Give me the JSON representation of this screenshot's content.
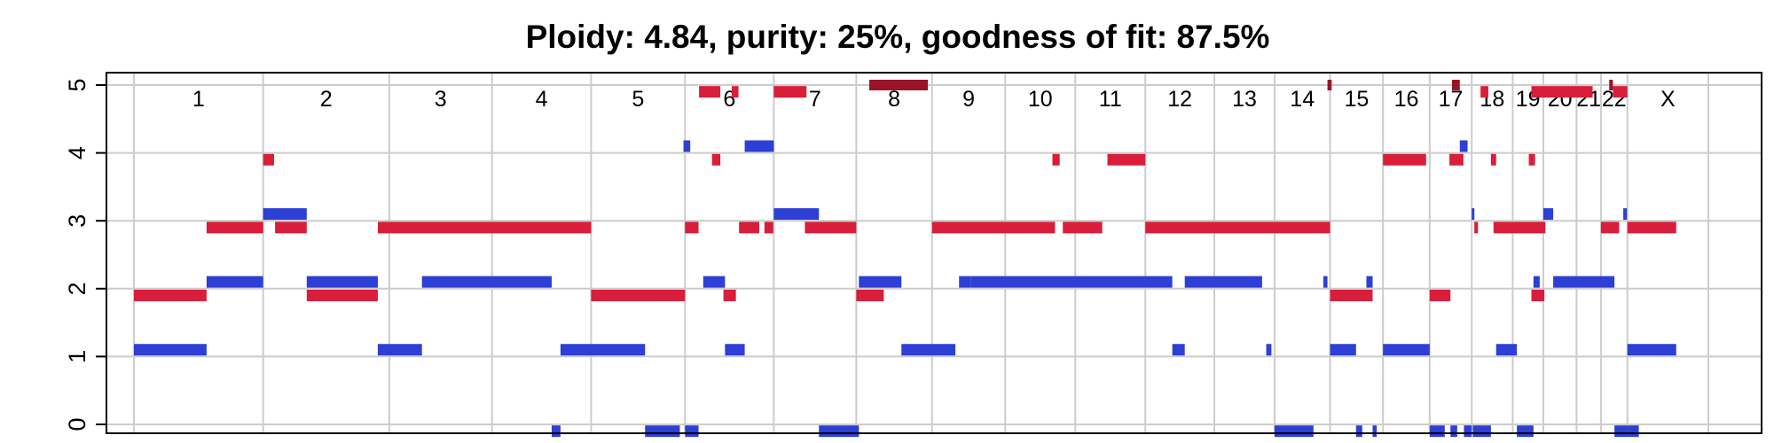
{
  "chart_data": {
    "type": "segment",
    "title": "Ploidy: 4.84, purity: 25%, goodness of fit: 87.5%",
    "xlabel": "",
    "ylabel": "",
    "ylim": [
      0,
      5
    ],
    "yticks": [
      "0",
      "1",
      "2",
      "3",
      "4",
      "5"
    ],
    "grid": true,
    "colors": {
      "major": "#d81e3a",
      "minor": "#2d3fd4",
      "clipped": "#9a1428"
    },
    "chromosomes": [
      {
        "label": "1",
        "start": 0,
        "end": 249
      },
      {
        "label": "2",
        "start": 249,
        "end": 492
      },
      {
        "label": "3",
        "start": 492,
        "end": 690
      },
      {
        "label": "4",
        "start": 690,
        "end": 881
      },
      {
        "label": "5",
        "start": 881,
        "end": 1062
      },
      {
        "label": "6",
        "start": 1062,
        "end": 1233
      },
      {
        "label": "7",
        "start": 1233,
        "end": 1392
      },
      {
        "label": "8",
        "start": 1392,
        "end": 1538
      },
      {
        "label": "9",
        "start": 1538,
        "end": 1679
      },
      {
        "label": "10",
        "start": 1679,
        "end": 1814
      },
      {
        "label": "11",
        "start": 1814,
        "end": 1949
      },
      {
        "label": "12",
        "start": 1949,
        "end": 2082
      },
      {
        "label": "13",
        "start": 2082,
        "end": 2198
      },
      {
        "label": "14",
        "start": 2198,
        "end": 2305
      },
      {
        "label": "15",
        "start": 2305,
        "end": 2407
      },
      {
        "label": "16",
        "start": 2407,
        "end": 2497
      },
      {
        "label": "17",
        "start": 2497,
        "end": 2578
      },
      {
        "label": "18",
        "start": 2578,
        "end": 2657
      },
      {
        "label": "19",
        "start": 2657,
        "end": 2716
      },
      {
        "label": "20",
        "start": 2716,
        "end": 2780
      },
      {
        "label": "21",
        "start": 2780,
        "end": 2827
      },
      {
        "label": "22",
        "start": 2827,
        "end": 2878
      },
      {
        "label": "X",
        "start": 2878,
        "end": 3034
      }
    ],
    "series": [
      {
        "name": "",
        "color": "#d81e3a",
        "segments": [
          {
            "start": 0,
            "end": 140,
            "value": 1.9
          },
          {
            "start": 140,
            "end": 249,
            "value": 2.9
          },
          {
            "start": 249,
            "end": 270,
            "value": 3.9
          },
          {
            "start": 272,
            "end": 333,
            "value": 2.9
          },
          {
            "start": 333,
            "end": 470,
            "value": 1.9
          },
          {
            "start": 470,
            "end": 881,
            "value": 2.9
          },
          {
            "start": 881,
            "end": 1062,
            "value": 1.9
          },
          {
            "start": 1062,
            "end": 1088,
            "value": 2.9
          },
          {
            "start": 1089,
            "end": 1130,
            "value": 4.9
          },
          {
            "start": 1114,
            "end": 1130,
            "value": 3.9
          },
          {
            "start": 1136,
            "end": 1160,
            "value": 1.9
          },
          {
            "start": 1152,
            "end": 1165,
            "value": 4.9
          },
          {
            "start": 1166,
            "end": 1205,
            "value": 2.9
          },
          {
            "start": 1215,
            "end": 1232,
            "value": 2.9
          },
          {
            "start": 1233,
            "end": 1296,
            "value": 4.9
          },
          {
            "start": 1293,
            "end": 1392,
            "value": 2.9
          },
          {
            "start": 1392,
            "end": 1445,
            "value": 1.9
          },
          {
            "start": 1538,
            "end": 1775,
            "value": 2.9
          },
          {
            "start": 1770,
            "end": 1784,
            "value": 3.9
          },
          {
            "start": 1790,
            "end": 1866,
            "value": 2.9
          },
          {
            "start": 1876,
            "end": 1949,
            "value": 3.9
          },
          {
            "start": 1949,
            "end": 2305,
            "value": 2.9
          },
          {
            "start": 2305,
            "end": 2387,
            "value": 1.9
          },
          {
            "start": 2407,
            "end": 2490,
            "value": 3.9
          },
          {
            "start": 2497,
            "end": 2537,
            "value": 1.9
          },
          {
            "start": 2535,
            "end": 2562,
            "value": 3.9
          },
          {
            "start": 2583,
            "end": 2590,
            "value": 2.9
          },
          {
            "start": 2595,
            "end": 2610,
            "value": 4.9
          },
          {
            "start": 2615,
            "end": 2625,
            "value": 3.9
          },
          {
            "start": 2620,
            "end": 2720,
            "value": 2.9
          },
          {
            "start": 2688,
            "end": 2700,
            "value": 3.9
          },
          {
            "start": 2693,
            "end": 2718,
            "value": 1.9
          },
          {
            "start": 2693,
            "end": 2811,
            "value": 4.9
          },
          {
            "start": 2827,
            "end": 2862,
            "value": 2.9
          },
          {
            "start": 2850,
            "end": 2878,
            "value": 4.9
          },
          {
            "start": 2878,
            "end": 2972,
            "value": 2.9
          }
        ]
      },
      {
        "name": "",
        "color": "#2d3fd4",
        "segments": [
          {
            "start": 0,
            "end": 140,
            "value": 1.1
          },
          {
            "start": 140,
            "end": 249,
            "value": 2.1
          },
          {
            "start": 249,
            "end": 333,
            "value": 3.1
          },
          {
            "start": 333,
            "end": 470,
            "value": 2.1
          },
          {
            "start": 470,
            "end": 555,
            "value": 1.1
          },
          {
            "start": 555,
            "end": 805,
            "value": 2.1
          },
          {
            "start": 805,
            "end": 822,
            "value": -0.1
          },
          {
            "start": 822,
            "end": 985,
            "value": 1.1
          },
          {
            "start": 985,
            "end": 1052,
            "value": -0.1
          },
          {
            "start": 1059,
            "end": 1072,
            "value": 4.1
          },
          {
            "start": 1062,
            "end": 1088,
            "value": -0.1
          },
          {
            "start": 1097,
            "end": 1139,
            "value": 2.1
          },
          {
            "start": 1139,
            "end": 1177,
            "value": 1.1
          },
          {
            "start": 1177,
            "end": 1233,
            "value": 4.1
          },
          {
            "start": 1233,
            "end": 1320,
            "value": 3.1
          },
          {
            "start": 1320,
            "end": 1397,
            "value": -0.1
          },
          {
            "start": 1397,
            "end": 1479,
            "value": 2.1
          },
          {
            "start": 1479,
            "end": 1576,
            "value": 1.1
          },
          {
            "start": 1576,
            "end": 1583,
            "value": 1.1
          },
          {
            "start": 1590,
            "end": 1613,
            "value": 2.1
          },
          {
            "start": 1613,
            "end": 2001,
            "value": 2.1
          },
          {
            "start": 2001,
            "end": 2025,
            "value": 1.1
          },
          {
            "start": 2025,
            "end": 2174,
            "value": 2.1
          },
          {
            "start": 2182,
            "end": 2192,
            "value": 1.1
          },
          {
            "start": 2198,
            "end": 2273,
            "value": -0.1
          },
          {
            "start": 2292,
            "end": 2300,
            "value": 2.1
          },
          {
            "start": 2305,
            "end": 2355,
            "value": 1.1
          },
          {
            "start": 2355,
            "end": 2367,
            "value": -0.1
          },
          {
            "start": 2375,
            "end": 2387,
            "value": 2.1
          },
          {
            "start": 2387,
            "end": 2395,
            "value": -0.1
          },
          {
            "start": 2407,
            "end": 2497,
            "value": 1.1
          },
          {
            "start": 2497,
            "end": 2526,
            "value": -0.1
          },
          {
            "start": 2537,
            "end": 2550,
            "value": -0.1
          },
          {
            "start": 2555,
            "end": 2570,
            "value": 4.1
          },
          {
            "start": 2563,
            "end": 2578,
            "value": -0.1
          },
          {
            "start": 2578,
            "end": 2582,
            "value": 3.1
          },
          {
            "start": 2580,
            "end": 2615,
            "value": -0.1
          },
          {
            "start": 2625,
            "end": 2665,
            "value": 1.1
          },
          {
            "start": 2665,
            "end": 2697,
            "value": -0.1
          },
          {
            "start": 2697,
            "end": 2709,
            "value": 2.1
          },
          {
            "start": 2716,
            "end": 2735,
            "value": 3.1
          },
          {
            "start": 2735,
            "end": 2853,
            "value": 2.1
          },
          {
            "start": 2853,
            "end": 2880,
            "value": -0.1
          },
          {
            "start": 2870,
            "end": 2877,
            "value": 3.1
          },
          {
            "start": 2880,
            "end": 2900,
            "value": -0.1
          },
          {
            "start": 2878,
            "end": 2972,
            "value": 1.1
          }
        ]
      }
    ],
    "clipped_segments": [
      {
        "start": 1420,
        "end": 1530,
        "value": 5
      },
      {
        "start": 1417,
        "end": 1422,
        "value": 5
      },
      {
        "start": 2300,
        "end": 2308,
        "value": 5
      },
      {
        "start": 2540,
        "end": 2555,
        "value": 5
      },
      {
        "start": 2843,
        "end": 2850,
        "value": 5
      }
    ]
  }
}
